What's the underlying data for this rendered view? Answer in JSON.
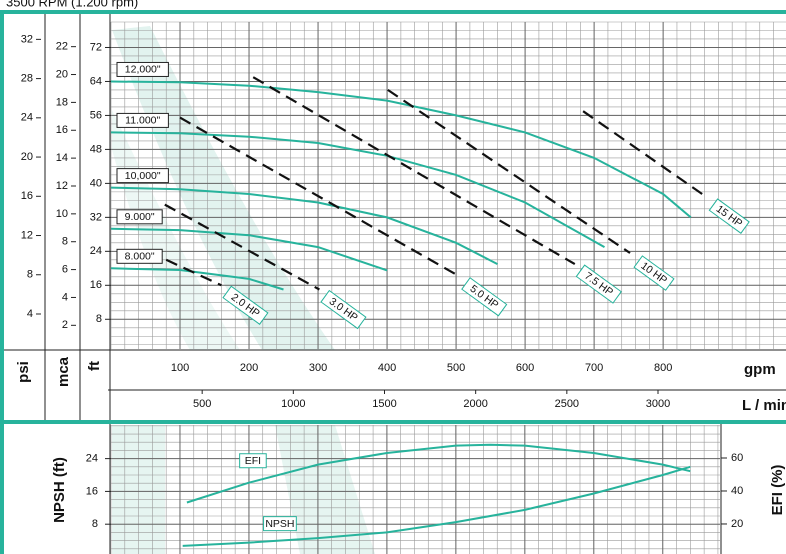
{
  "chart_data": [
    {
      "type": "line",
      "title": "3500 RPM (1.200 rpm)",
      "x_label": "gpm",
      "x2_label": "L / min",
      "y_label": "ft",
      "y2_label": "psi",
      "y3_label": "mca",
      "xlim": [
        0,
        978
      ],
      "xticks": [
        100,
        200,
        300,
        400,
        500,
        600,
        700,
        800
      ],
      "x2lim": [
        0,
        3702
      ],
      "x2ticks": [
        500,
        1000,
        1500,
        2000,
        2500,
        3000
      ],
      "ylim": [
        1,
        78
      ],
      "yticks": [
        8,
        16,
        24,
        32,
        40,
        48,
        56,
        64,
        72
      ],
      "y2lim": [
        0.43,
        33.77
      ],
      "y2ticks": [
        4,
        8,
        12,
        16,
        20,
        24,
        28,
        32
      ],
      "y3lim": [
        0.3,
        23.77
      ],
      "y3ticks": [
        2,
        4,
        6,
        8,
        10,
        12,
        14,
        16,
        18,
        20,
        22
      ],
      "grid": true,
      "series": [
        {
          "name": "12,000\"",
          "color": "#27b39c",
          "style": "solid",
          "x": [
            0,
            100,
            200,
            300,
            400,
            500,
            600,
            700,
            800,
            840
          ],
          "values": [
            64,
            63.8,
            63,
            61.5,
            59.5,
            56,
            52,
            46,
            37.5,
            32
          ]
        },
        {
          "name": "11.000\"",
          "color": "#27b39c",
          "style": "solid",
          "x": [
            0,
            100,
            200,
            300,
            400,
            500,
            600,
            715
          ],
          "values": [
            52,
            51.8,
            51,
            49.5,
            46.5,
            42,
            35.5,
            25
          ]
        },
        {
          "name": "10,000\"",
          "color": "#27b39c",
          "style": "solid",
          "x": [
            0,
            100,
            200,
            300,
            400,
            500,
            560
          ],
          "values": [
            39,
            38.6,
            37.5,
            35.5,
            32,
            26,
            21
          ]
        },
        {
          "name": "9.000\"",
          "color": "#27b39c",
          "style": "solid",
          "x": [
            0,
            100,
            200,
            300,
            400
          ],
          "values": [
            29.3,
            29,
            27.8,
            25,
            19.5
          ]
        },
        {
          "name": "8.000\"",
          "color": "#27b39c",
          "style": "solid",
          "x": [
            0,
            100,
            200,
            250
          ],
          "values": [
            20,
            19.6,
            17.5,
            15
          ]
        },
        {
          "name": "2.0 HP",
          "color": "#111111",
          "style": "dashed",
          "x": [
            80,
            160
          ],
          "values": [
            22,
            16
          ]
        },
        {
          "name": "3.0 HP",
          "color": "#111111",
          "style": "dashed",
          "x": [
            78,
            302
          ],
          "values": [
            35,
            15
          ]
        },
        {
          "name": "5.0 HP",
          "color": "#111111",
          "style": "dashed",
          "x": [
            100,
            506
          ],
          "values": [
            55.5,
            18
          ]
        },
        {
          "name": "7.5 HP",
          "color": "#111111",
          "style": "dashed",
          "x": [
            206,
            672
          ],
          "values": [
            65,
            21
          ]
        },
        {
          "name": "10 HP",
          "color": "#111111",
          "style": "dashed",
          "x": [
            401,
            752
          ],
          "values": [
            62,
            23.6
          ]
        },
        {
          "name": "15 HP",
          "color": "#111111",
          "style": "dashed",
          "x": [
            684,
            861
          ],
          "values": [
            57,
            37
          ]
        }
      ]
    },
    {
      "type": "line",
      "y_label": "NPSH (ft)",
      "y2_label": "EFI (%)",
      "xlim": [
        0,
        883
      ],
      "ylim": [
        0.73,
        32.2
      ],
      "yticks": [
        8,
        16,
        24
      ],
      "y2lim": [
        1.8,
        80
      ],
      "y2ticks": [
        20,
        40,
        60
      ],
      "grid": true,
      "series": [
        {
          "name": "EFI",
          "color": "#27b39c",
          "axis": "y2",
          "x": [
            110,
            200,
            300,
            400,
            500,
            550,
            600,
            700,
            800,
            840
          ],
          "values": [
            33,
            45,
            56,
            63,
            67.5,
            68,
            67.5,
            63,
            56,
            52
          ]
        },
        {
          "name": "NPSH",
          "color": "#27b39c",
          "x": [
            104,
            200,
            300,
            400,
            500,
            600,
            700,
            800,
            840
          ],
          "values": [
            2.7,
            3.5,
            4.6,
            6,
            8.5,
            11.5,
            15.5,
            20,
            22
          ]
        }
      ]
    }
  ]
}
